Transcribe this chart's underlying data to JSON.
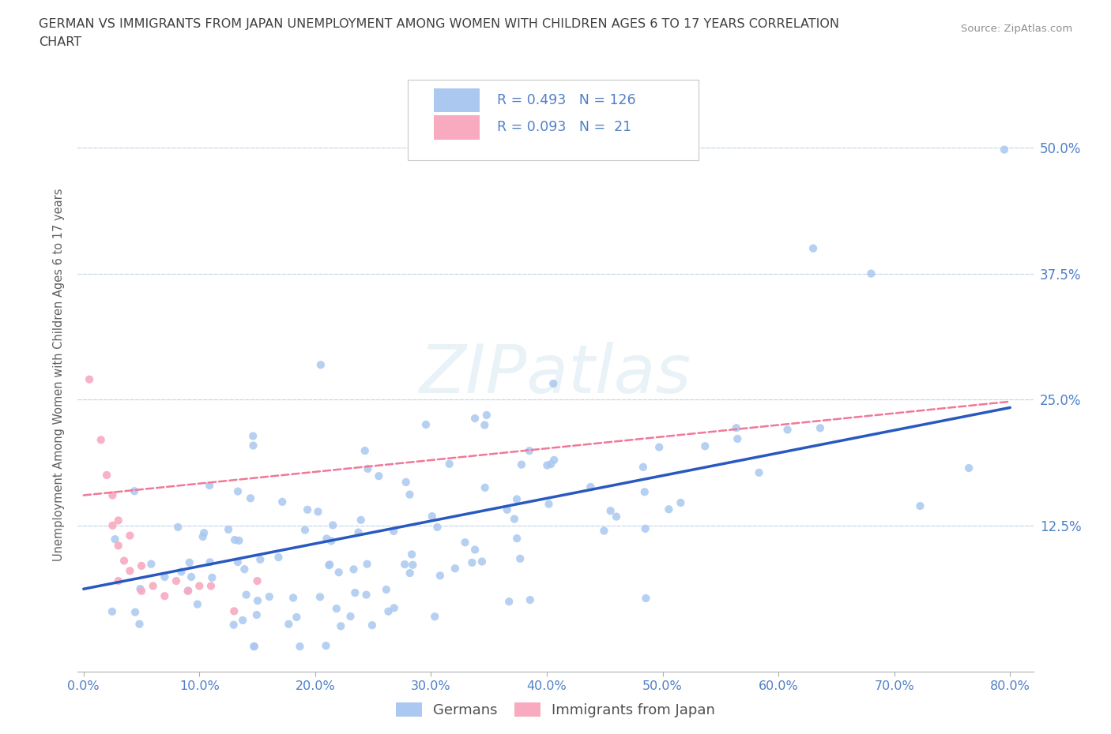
{
  "title_line1": "GERMAN VS IMMIGRANTS FROM JAPAN UNEMPLOYMENT AMONG WOMEN WITH CHILDREN AGES 6 TO 17 YEARS CORRELATION",
  "title_line2": "CHART",
  "source": "Source: ZipAtlas.com",
  "ylabel": "Unemployment Among Women with Children Ages 6 to 17 years",
  "watermark": "ZIPatlas",
  "xlim": [
    -0.005,
    0.82
  ],
  "ylim": [
    -0.02,
    0.57
  ],
  "xtick_positions": [
    0.0,
    0.1,
    0.2,
    0.3,
    0.4,
    0.5,
    0.6,
    0.7,
    0.8
  ],
  "xticklabels": [
    "0.0%",
    "10.0%",
    "20.0%",
    "30.0%",
    "40.0%",
    "50.0%",
    "60.0%",
    "70.0%",
    "80.0%"
  ],
  "ytick_positions": [
    0.0,
    0.125,
    0.25,
    0.375,
    0.5
  ],
  "yticklabels": [
    "",
    "12.5%",
    "25.0%",
    "37.5%",
    "50.0%"
  ],
  "german_R": 0.493,
  "german_N": 126,
  "japan_R": 0.093,
  "japan_N": 21,
  "german_color": "#aac8f0",
  "japan_color": "#f8aac0",
  "german_line_color": "#2858c0",
  "japan_line_color": "#f07898",
  "tick_label_color": "#5080c8",
  "grid_color": "#c8d8ea",
  "background_color": "#ffffff",
  "legend_label1": "Germans",
  "legend_label2": "Immigrants from Japan",
  "german_line_x0": 0.0,
  "german_line_y0": 0.062,
  "german_line_x1": 0.8,
  "german_line_y1": 0.242,
  "japan_line_x0": 0.0,
  "japan_line_y0": 0.155,
  "japan_line_x1": 0.8,
  "japan_line_y1": 0.248,
  "seed": 42
}
